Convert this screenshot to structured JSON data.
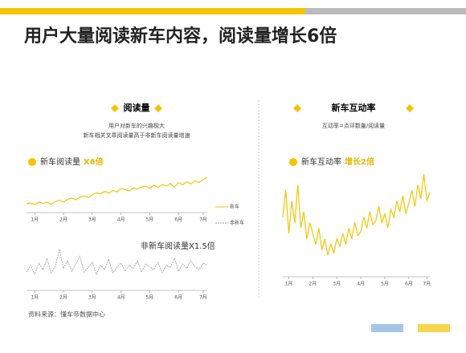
{
  "title": "用户大量阅读新车内容，阅读量增长6倍",
  "left_section": {
    "heading": "阅读量",
    "notes": [
      "用户对新车的兴趣极大",
      "新车相关文章阅读量高于非新车阅读量增速"
    ]
  },
  "right_section": {
    "heading": "新车互动率",
    "notes": [
      "互动率=点评数量/阅读量"
    ]
  },
  "source": "资料来源：懂车帝数据中心",
  "chart_data": [
    {
      "type": "line",
      "title": "新车阅读量",
      "highlight": "X6倍",
      "series": [
        {
          "name": "新车",
          "color": "#f5c400",
          "values": [
            20,
            22,
            18,
            24,
            21,
            23,
            19,
            25,
            28,
            24,
            30,
            33,
            29,
            35,
            38,
            34,
            40,
            45,
            42,
            48,
            44,
            50,
            47,
            55,
            52,
            49,
            56,
            53,
            58,
            60,
            55,
            62,
            57,
            64,
            60,
            66,
            58,
            68,
            63,
            70,
            65,
            72,
            68,
            75,
            80
          ]
        }
      ],
      "xlim": [
        0,
        44
      ],
      "ylim": [
        0,
        100
      ],
      "xticks": [
        {
          "value": 2,
          "label": "1月"
        },
        {
          "value": 9,
          "label": "2月"
        },
        {
          "value": 16,
          "label": "3月"
        },
        {
          "value": 23,
          "label": "4月"
        },
        {
          "value": 30,
          "label": "5月"
        },
        {
          "value": 37,
          "label": "6月"
        },
        {
          "value": 43,
          "label": "7月"
        }
      ]
    },
    {
      "type": "line",
      "title": "非新车阅读量X1.5倍",
      "series": [
        {
          "name": "非新车",
          "color": "#999999",
          "dashed": true,
          "values": [
            40,
            55,
            35,
            60,
            45,
            70,
            38,
            52,
            90,
            48,
            65,
            42,
            58,
            75,
            40,
            50,
            62,
            35,
            55,
            45,
            68,
            38,
            50,
            60,
            42,
            55,
            48,
            65,
            40,
            58,
            52,
            45,
            62,
            38,
            55,
            50,
            70,
            42,
            58,
            48,
            65,
            52,
            45,
            60,
            55
          ]
        }
      ],
      "xlim": [
        0,
        44
      ],
      "ylim": [
        0,
        100
      ],
      "xticks": [
        {
          "value": 2,
          "label": "1月"
        },
        {
          "value": 9,
          "label": "2月"
        },
        {
          "value": 16,
          "label": "3月"
        },
        {
          "value": 23,
          "label": "4月"
        },
        {
          "value": 30,
          "label": "5月"
        },
        {
          "value": 37,
          "label": "6月"
        },
        {
          "value": 43,
          "label": "7月"
        }
      ]
    },
    {
      "type": "line",
      "title": "新车互动率",
      "highlight": "增长2倍",
      "series": [
        {
          "name": "新车互动率",
          "color": "#f5c400",
          "values": [
            55,
            80,
            40,
            70,
            50,
            85,
            45,
            60,
            35,
            50,
            40,
            30,
            45,
            25,
            35,
            20,
            30,
            22,
            35,
            28,
            40,
            30,
            45,
            35,
            50,
            38,
            42,
            55,
            45,
            60,
            48,
            52,
            65,
            50,
            58,
            45,
            62,
            55,
            70,
            60,
            75,
            58,
            68,
            80,
            65,
            85,
            72,
            95,
            70,
            78
          ]
        }
      ],
      "xlim": [
        0,
        49
      ],
      "ylim": [
        0,
        100
      ],
      "xticks": [
        {
          "value": 2,
          "label": "1月"
        },
        {
          "value": 10,
          "label": "2月"
        },
        {
          "value": 18,
          "label": "3月"
        },
        {
          "value": 26,
          "label": "4月"
        },
        {
          "value": 34,
          "label": "5月"
        },
        {
          "value": 42,
          "label": "6月"
        },
        {
          "value": 48,
          "label": "7月"
        }
      ]
    }
  ]
}
